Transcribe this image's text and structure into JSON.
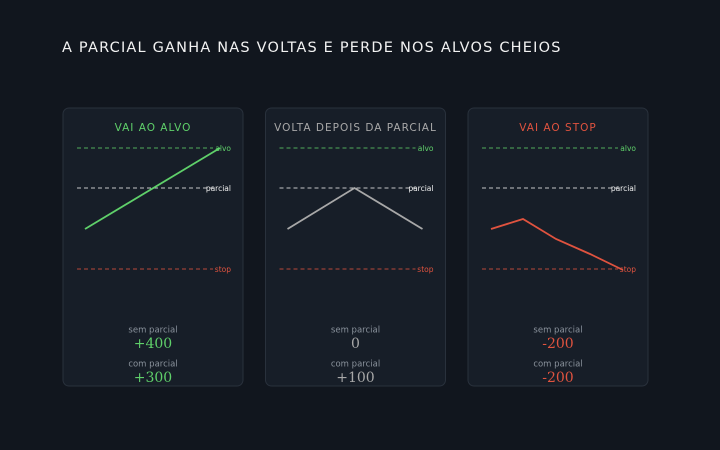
{
  "title": "A PARCIAL GANHA NAS VOLTAS E PERDE NOS ALVOS CHEIOS",
  "cards": [
    {
      "title": "VAI AO ALVO",
      "color": "#5fd06a",
      "levels": [
        "alvo",
        "parcial",
        "stop"
      ],
      "rows": [
        {
          "label": "sem parcial",
          "value": "+400"
        },
        {
          "label": "com parcial",
          "value": "+300"
        }
      ]
    },
    {
      "title": "VOLTA DEPOIS DA PARCIAL",
      "color": "#a8a8a8",
      "levels": [
        "alvo",
        "parcial",
        "stop"
      ],
      "rows": [
        {
          "label": "sem parcial",
          "value": "0"
        },
        {
          "label": "com parcial",
          "value": "+100"
        }
      ]
    },
    {
      "title": "VAI AO STOP",
      "color": "#e0533f",
      "levels": [
        "alvo",
        "parcial",
        "stop"
      ],
      "rows": [
        {
          "label": "sem parcial",
          "value": "-200"
        },
        {
          "label": "com parcial",
          "value": "-200"
        }
      ]
    }
  ]
}
